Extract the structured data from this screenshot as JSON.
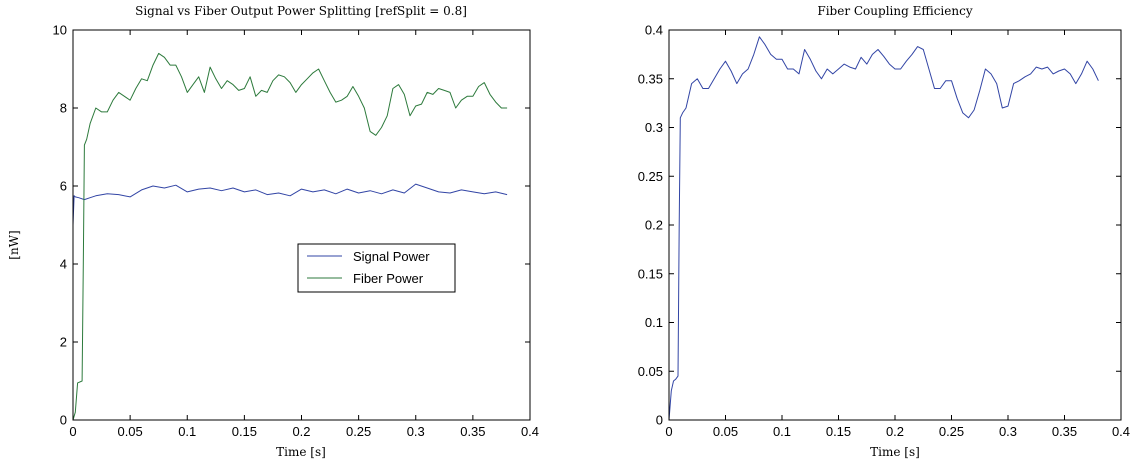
{
  "chart_data": [
    {
      "type": "line",
      "title": "Signal vs Fiber Output Power Splitting [refSplit = 0.8]",
      "xlabel": "Time [s]",
      "ylabel": "[nW]",
      "xlim": [
        0,
        0.4
      ],
      "ylim": [
        0,
        10
      ],
      "xticks": [
        "0",
        "0.05",
        "0.1",
        "0.15",
        "0.2",
        "0.25",
        "0.3",
        "0.35",
        "0.4"
      ],
      "yticks": [
        "0",
        "2",
        "4",
        "6",
        "8",
        "10"
      ],
      "grid": false,
      "legend_position": "center-right",
      "series": [
        {
          "name": "Signal Power",
          "color": "#3245a5",
          "x": [
            0,
            0.001,
            0.002,
            0.005,
            0.01,
            0.015,
            0.02,
            0.03,
            0.04,
            0.05,
            0.06,
            0.07,
            0.08,
            0.09,
            0.1,
            0.11,
            0.12,
            0.13,
            0.14,
            0.15,
            0.16,
            0.17,
            0.18,
            0.19,
            0.2,
            0.21,
            0.22,
            0.23,
            0.24,
            0.25,
            0.26,
            0.27,
            0.28,
            0.29,
            0.3,
            0.31,
            0.32,
            0.33,
            0.34,
            0.35,
            0.36,
            0.37,
            0.38
          ],
          "y": [
            5.0,
            5.75,
            5.72,
            5.7,
            5.65,
            5.7,
            5.75,
            5.8,
            5.78,
            5.72,
            5.9,
            6.0,
            5.95,
            6.02,
            5.85,
            5.92,
            5.95,
            5.88,
            5.95,
            5.85,
            5.9,
            5.78,
            5.82,
            5.75,
            5.92,
            5.85,
            5.9,
            5.8,
            5.92,
            5.82,
            5.88,
            5.8,
            5.9,
            5.82,
            6.05,
            5.95,
            5.85,
            5.82,
            5.9,
            5.85,
            5.8,
            5.85,
            5.78
          ]
        },
        {
          "name": "Fiber Power",
          "color": "#2d7a3c",
          "x": [
            0,
            0.002,
            0.004,
            0.008,
            0.009,
            0.01,
            0.012,
            0.015,
            0.02,
            0.025,
            0.03,
            0.035,
            0.04,
            0.05,
            0.055,
            0.06,
            0.065,
            0.07,
            0.075,
            0.08,
            0.085,
            0.09,
            0.095,
            0.1,
            0.105,
            0.11,
            0.115,
            0.12,
            0.125,
            0.13,
            0.135,
            0.14,
            0.145,
            0.15,
            0.155,
            0.16,
            0.165,
            0.17,
            0.175,
            0.18,
            0.185,
            0.19,
            0.195,
            0.2,
            0.205,
            0.21,
            0.215,
            0.22,
            0.225,
            0.23,
            0.235,
            0.24,
            0.245,
            0.25,
            0.255,
            0.26,
            0.265,
            0.27,
            0.275,
            0.28,
            0.285,
            0.29,
            0.295,
            0.3,
            0.305,
            0.31,
            0.315,
            0.32,
            0.325,
            0.33,
            0.335,
            0.34,
            0.345,
            0.35,
            0.355,
            0.36,
            0.365,
            0.37,
            0.375,
            0.38
          ],
          "y": [
            0,
            0.2,
            0.95,
            1.0,
            4.0,
            7.05,
            7.2,
            7.6,
            8.0,
            7.9,
            7.9,
            8.2,
            8.4,
            8.2,
            8.5,
            8.75,
            8.7,
            9.1,
            9.4,
            9.3,
            9.1,
            9.1,
            8.8,
            8.4,
            8.6,
            8.8,
            8.4,
            9.05,
            8.75,
            8.5,
            8.7,
            8.6,
            8.45,
            8.5,
            8.8,
            8.3,
            8.45,
            8.4,
            8.7,
            8.85,
            8.8,
            8.65,
            8.4,
            8.6,
            8.75,
            8.9,
            9.0,
            8.7,
            8.4,
            8.15,
            8.2,
            8.3,
            8.55,
            8.3,
            8.0,
            7.4,
            7.3,
            7.5,
            7.8,
            8.5,
            8.6,
            8.35,
            7.8,
            8.05,
            8.1,
            8.4,
            8.35,
            8.5,
            8.45,
            8.4,
            8.0,
            8.2,
            8.3,
            8.3,
            8.55,
            8.65,
            8.35,
            8.15,
            8.0,
            8.0
          ]
        }
      ]
    },
    {
      "type": "line",
      "title": "Fiber Coupling Efficiency",
      "xlabel": "Time [s]",
      "ylabel": "",
      "xlim": [
        0,
        0.4
      ],
      "ylim": [
        0,
        0.4
      ],
      "xticks": [
        "0",
        "0.05",
        "0.1",
        "0.15",
        "0.2",
        "0.25",
        "0.3",
        "0.35",
        "0.4"
      ],
      "yticks": [
        "0",
        "0.05",
        "0.1",
        "0.15",
        "0.2",
        "0.25",
        "0.3",
        "0.35",
        "0.4"
      ],
      "grid": false,
      "series": [
        {
          "color": "#3245a5",
          "x": [
            0,
            0.002,
            0.004,
            0.006,
            0.008,
            0.009,
            0.01,
            0.012,
            0.015,
            0.02,
            0.025,
            0.03,
            0.035,
            0.04,
            0.045,
            0.05,
            0.055,
            0.06,
            0.065,
            0.07,
            0.075,
            0.08,
            0.085,
            0.09,
            0.095,
            0.1,
            0.105,
            0.11,
            0.115,
            0.12,
            0.125,
            0.13,
            0.135,
            0.14,
            0.145,
            0.15,
            0.155,
            0.16,
            0.165,
            0.17,
            0.175,
            0.18,
            0.185,
            0.19,
            0.195,
            0.2,
            0.205,
            0.21,
            0.215,
            0.22,
            0.225,
            0.23,
            0.235,
            0.24,
            0.245,
            0.25,
            0.255,
            0.26,
            0.265,
            0.27,
            0.275,
            0.28,
            0.285,
            0.29,
            0.295,
            0.3,
            0.305,
            0.31,
            0.315,
            0.32,
            0.325,
            0.33,
            0.335,
            0.34,
            0.345,
            0.35,
            0.355,
            0.36,
            0.365,
            0.37,
            0.375,
            0.38
          ],
          "y": [
            0,
            0.03,
            0.04,
            0.042,
            0.045,
            0.2,
            0.31,
            0.315,
            0.32,
            0.345,
            0.35,
            0.34,
            0.34,
            0.35,
            0.36,
            0.368,
            0.358,
            0.345,
            0.355,
            0.36,
            0.375,
            0.393,
            0.385,
            0.375,
            0.37,
            0.37,
            0.36,
            0.36,
            0.355,
            0.38,
            0.37,
            0.358,
            0.35,
            0.36,
            0.355,
            0.36,
            0.365,
            0.362,
            0.36,
            0.372,
            0.365,
            0.375,
            0.38,
            0.373,
            0.365,
            0.36,
            0.36,
            0.368,
            0.375,
            0.383,
            0.38,
            0.36,
            0.34,
            0.34,
            0.348,
            0.348,
            0.33,
            0.315,
            0.31,
            0.318,
            0.338,
            0.36,
            0.355,
            0.345,
            0.32,
            0.322,
            0.345,
            0.348,
            0.352,
            0.355,
            0.362,
            0.36,
            0.362,
            0.355,
            0.358,
            0.36,
            0.355,
            0.345,
            0.355,
            0.368,
            0.36,
            0.348
          ]
        }
      ]
    }
  ]
}
